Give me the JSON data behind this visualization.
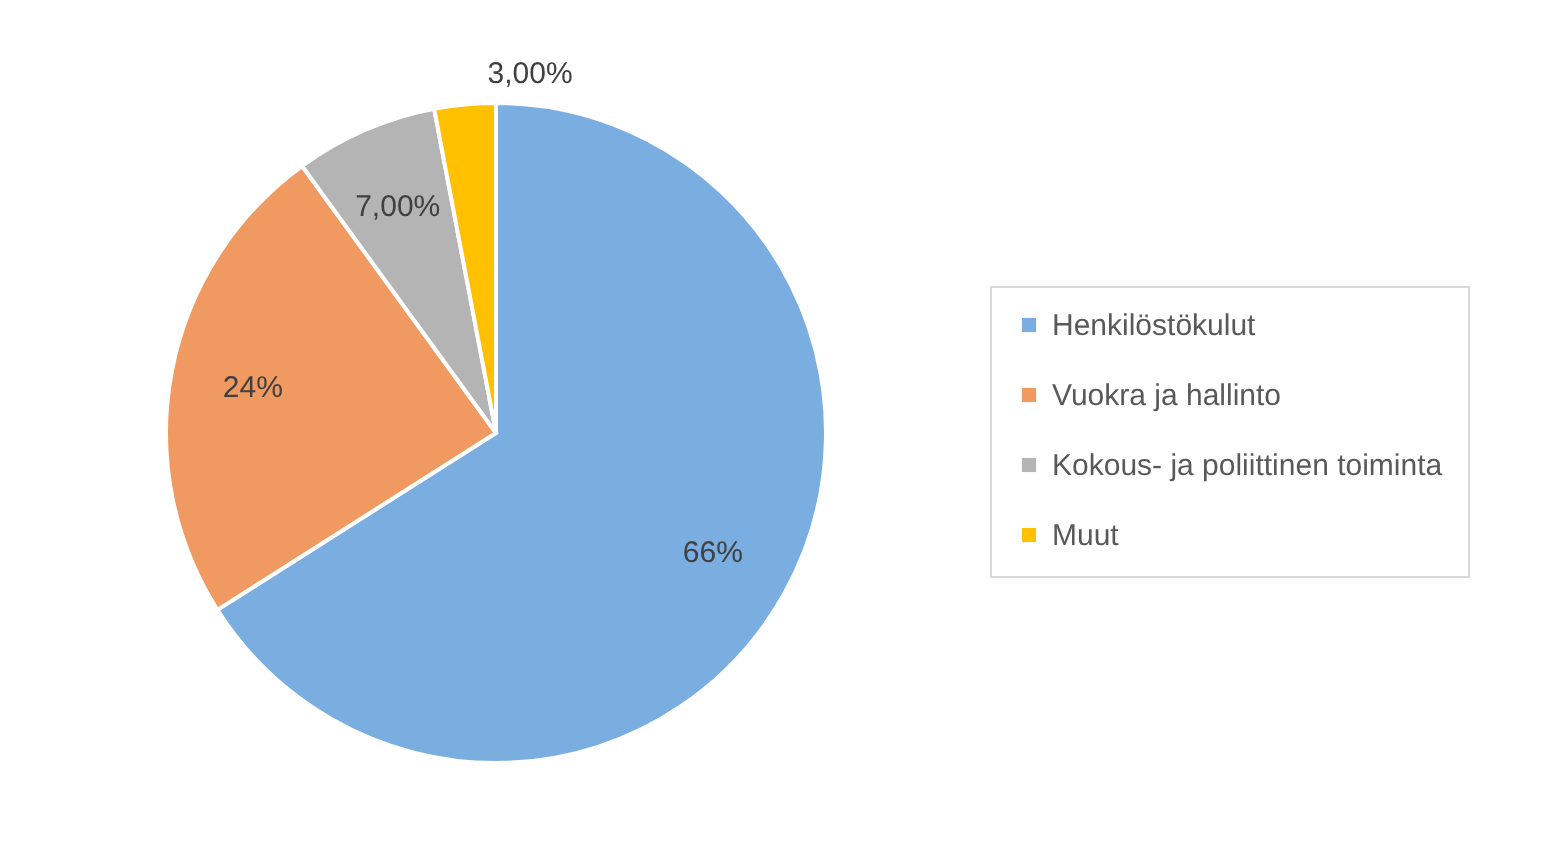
{
  "chart_data": {
    "type": "pie",
    "categories": [
      "Henkilöstökulut",
      "Vuokra ja hallinto",
      "Kokous- ja poliittinen toiminta",
      "Muut"
    ],
    "values": [
      66,
      24,
      7,
      3
    ],
    "value_labels": [
      "66%",
      "24%",
      "7,00%",
      "3,00%"
    ],
    "colors": [
      "#7aaee0",
      "#f09a62",
      "#b4b4b4",
      "#ffc000"
    ],
    "legend": "right"
  }
}
